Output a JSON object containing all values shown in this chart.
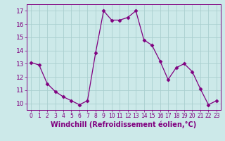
{
  "x": [
    0,
    1,
    2,
    3,
    4,
    5,
    6,
    7,
    8,
    9,
    10,
    11,
    12,
    13,
    14,
    15,
    16,
    17,
    18,
    19,
    20,
    21,
    22,
    23
  ],
  "y": [
    13.1,
    12.9,
    11.5,
    10.9,
    10.5,
    10.2,
    9.9,
    10.2,
    13.8,
    17.0,
    16.3,
    16.3,
    16.5,
    17.0,
    14.8,
    14.4,
    13.2,
    11.8,
    12.7,
    13.0,
    12.4,
    11.1,
    9.9,
    10.2
  ],
  "line_color": "#800080",
  "marker": "D",
  "marker_size": 2.5,
  "bg_color": "#cce9e9",
  "grid_color": "#aacfcf",
  "xlabel": "Windchill (Refroidissement éolien,°C)",
  "ylim": [
    9.5,
    17.5
  ],
  "xlim": [
    -0.5,
    23.5
  ],
  "yticks": [
    10,
    11,
    12,
    13,
    14,
    15,
    16,
    17
  ],
  "xticks": [
    0,
    1,
    2,
    3,
    4,
    5,
    6,
    7,
    8,
    9,
    10,
    11,
    12,
    13,
    14,
    15,
    16,
    17,
    18,
    19,
    20,
    21,
    22,
    23
  ],
  "xtick_fontsize": 5.5,
  "ytick_fontsize": 6.5,
  "label_fontsize": 7.0
}
